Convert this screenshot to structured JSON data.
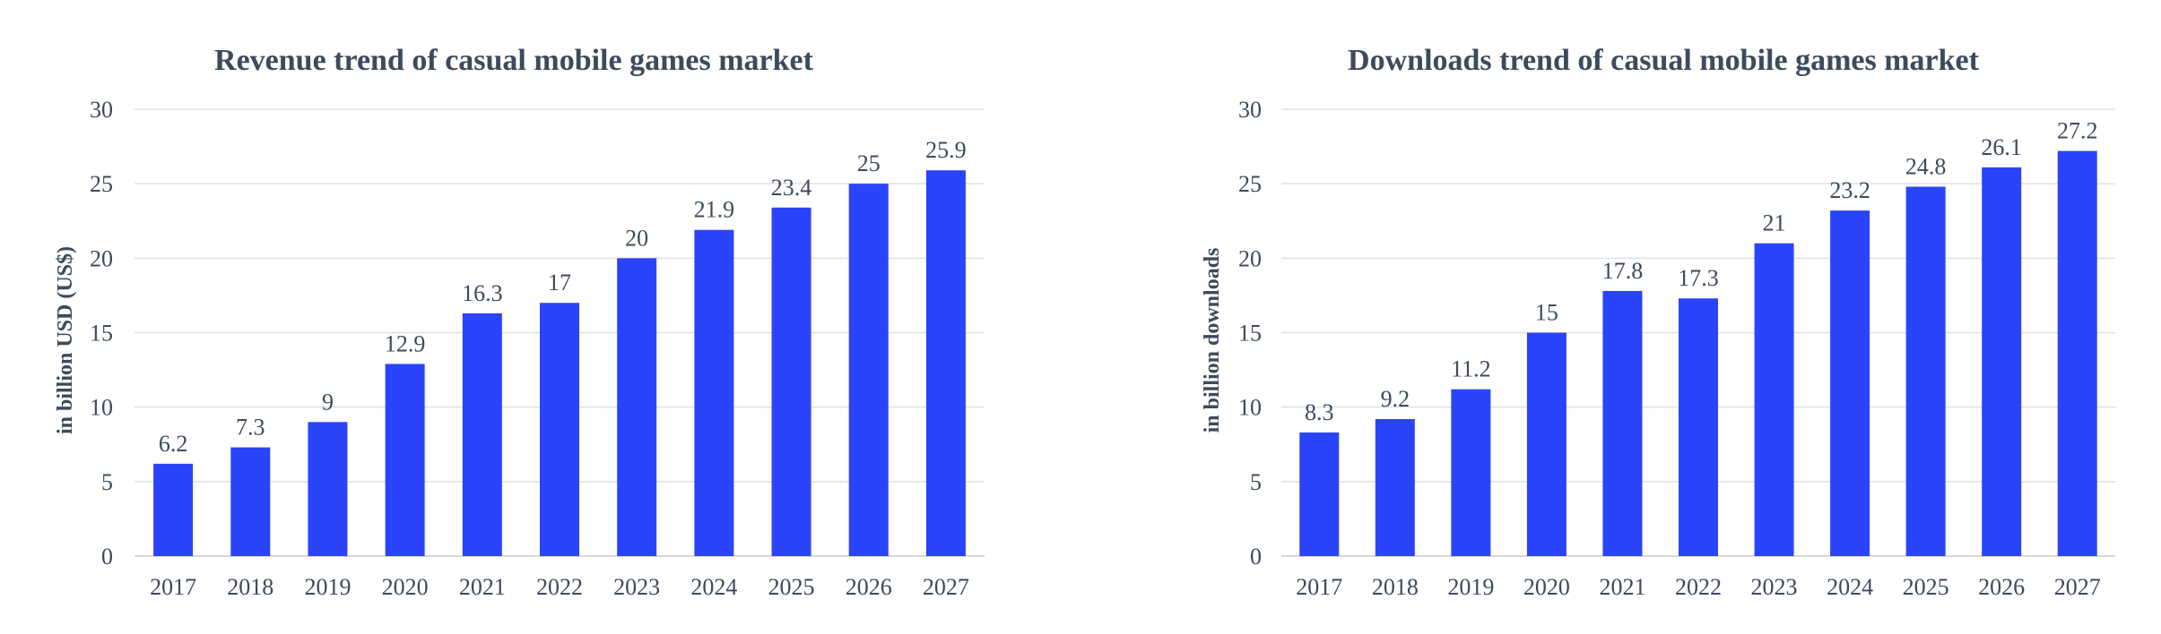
{
  "colors": {
    "bar": "#2a44fb",
    "text": "#3e4a5c",
    "grid": "#dde0e6"
  },
  "chart_data": [
    {
      "type": "bar",
      "title": "Revenue trend of casual mobile games market",
      "xlabel": "",
      "ylabel": "in billion USD (US$)",
      "categories": [
        "2017",
        "2018",
        "2019",
        "2020",
        "2021",
        "2022",
        "2023",
        "2024",
        "2025",
        "2026",
        "2027"
      ],
      "values": [
        6.2,
        7.3,
        9,
        12.9,
        16.3,
        17,
        20,
        21.9,
        23.4,
        25,
        25.9
      ],
      "value_labels": [
        "6.2",
        "7.3",
        "9",
        "12.9",
        "16.3",
        "17",
        "20",
        "21.9",
        "23.4",
        "25",
        "25.9"
      ],
      "ylim": [
        0,
        30
      ],
      "yticks": [
        "0",
        "5",
        "10",
        "15",
        "20",
        "25",
        "30"
      ],
      "grid": true,
      "legend": "none"
    },
    {
      "type": "bar",
      "title": "Downloads trend of casual mobile games market",
      "xlabel": "",
      "ylabel": "in billion downloads",
      "categories": [
        "2017",
        "2018",
        "2019",
        "2020",
        "2021",
        "2022",
        "2023",
        "2024",
        "2025",
        "2026",
        "2027"
      ],
      "values": [
        8.3,
        9.2,
        11.2,
        15,
        17.8,
        17.3,
        21,
        23.2,
        24.8,
        26.1,
        27.2
      ],
      "value_labels": [
        "8.3",
        "9.2",
        "11.2",
        "15",
        "17.8",
        "17.3",
        "21",
        "23.2",
        "24.8",
        "26.1",
        "27.2"
      ],
      "ylim": [
        0,
        30
      ],
      "yticks": [
        "0",
        "5",
        "10",
        "15",
        "20",
        "25",
        "30"
      ],
      "grid": true,
      "legend": "none"
    }
  ]
}
